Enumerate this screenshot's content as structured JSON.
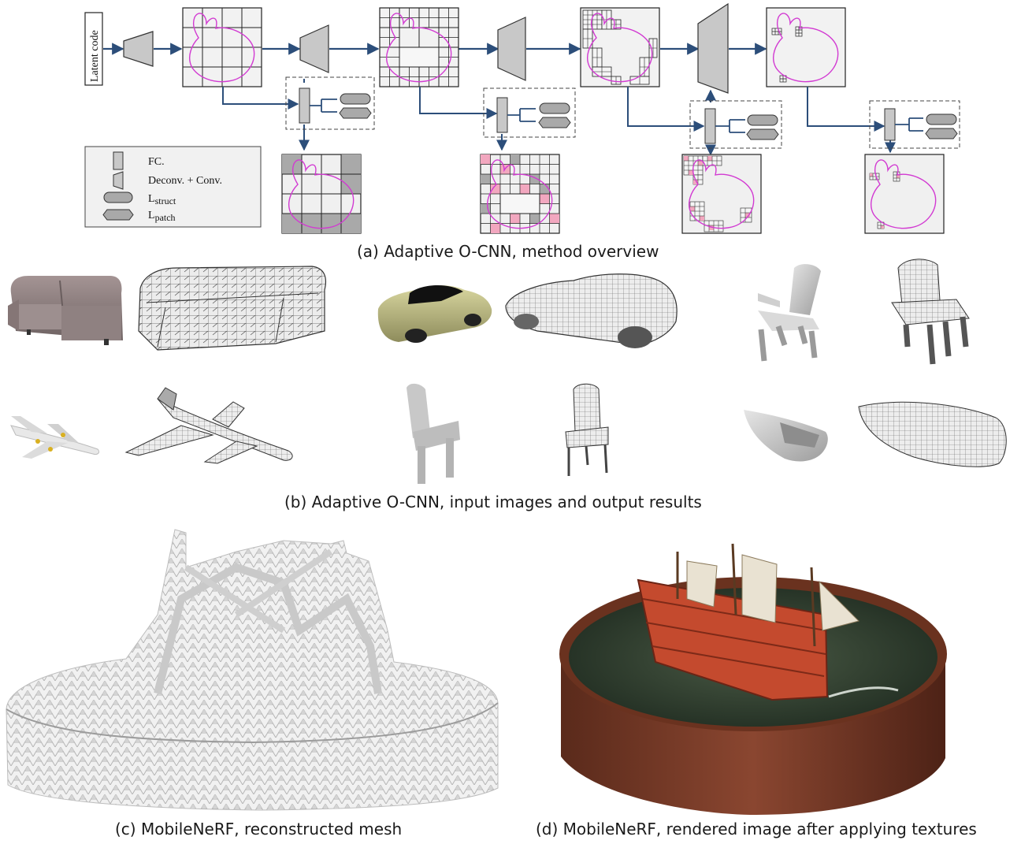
{
  "overview": {
    "latent_label": "Latent code",
    "legend": {
      "fc": "FC.",
      "deconv": "Deconv. + Conv.",
      "lstruct_main": "L",
      "lstruct_sub": "struct",
      "lpatch_main": "L",
      "lpatch_sub": "patch"
    }
  },
  "captions": {
    "a": "(a) Adaptive O-CNN, method overview",
    "b": "(b) Adaptive O-CNN, input images and output results",
    "c": "(c) MobileNeRF, reconstructed mesh",
    "d": "(d) MobileNeRF, rendered image after applying textures"
  },
  "colors": {
    "arrow": "#2c4e7a",
    "curve": "#d23ad2",
    "cell_gray": "#a9a9a9",
    "cell_pink": "#f2a7bf",
    "box_fill": "#ececec",
    "legend_fill": "#f1f1f1",
    "mesh": "#e7e7e7",
    "ship_hull": "#c44a2e",
    "water": "#334233",
    "tub": "#7a3a26"
  },
  "objects": {
    "row1": [
      "sofa-render",
      "sofa-mesh",
      "car-render",
      "car-mesh",
      "chair-render",
      "chair-mesh"
    ],
    "row2": [
      "airplane-render",
      "airplane-mesh",
      "simple-chair-render",
      "simple-chair-mesh",
      "boat-render",
      "boat-mesh"
    ]
  }
}
